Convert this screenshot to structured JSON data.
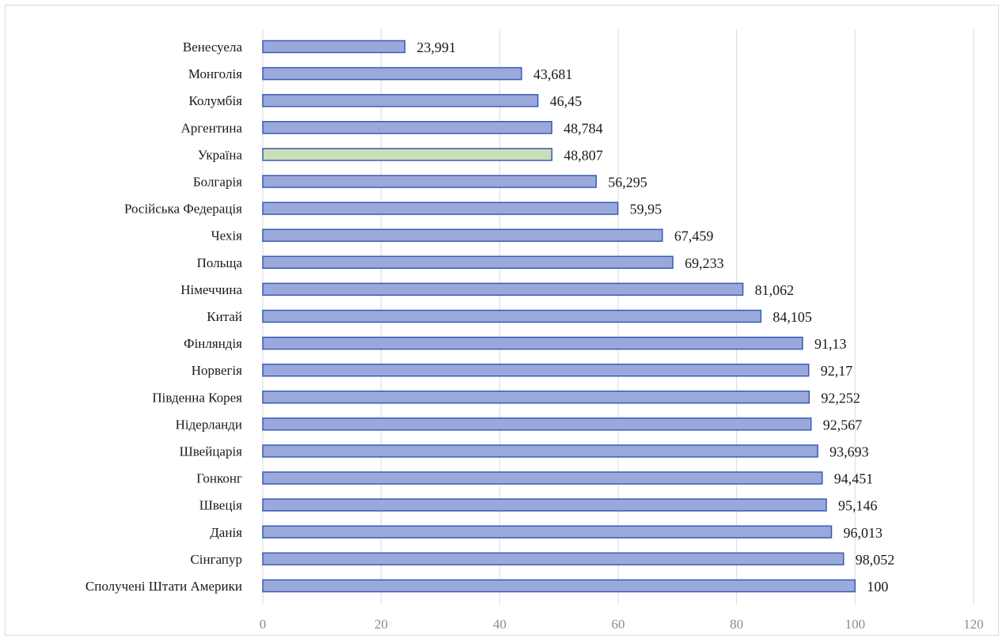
{
  "chart_data": {
    "type": "bar",
    "orientation": "horizontal",
    "categories": [
      "Венесуела",
      "Монголія",
      "Колумбія",
      "Аргентина",
      "Україна",
      "Болгарія",
      "Російська Федерація",
      "Чехія",
      "Польща",
      "Німеччина",
      "Китай",
      "Фінляндія",
      "Норвегія",
      "Південна Корея",
      "Нідерланди",
      "Швейцарія",
      "Гонконг",
      "Швеція",
      "Данія",
      "Сінгапур",
      "Сполучені Штати Америки"
    ],
    "values": [
      23.991,
      43.681,
      46.45,
      48.784,
      48.807,
      56.295,
      59.95,
      67.459,
      69.233,
      81.062,
      84.105,
      91.13,
      92.17,
      92.252,
      92.567,
      93.693,
      94.451,
      95.146,
      96.013,
      98.052,
      100
    ],
    "value_labels": [
      "23,991",
      "43,681",
      "46,45",
      "48,784",
      "48,807",
      "56,295",
      "59,95",
      "67,459",
      "69,233",
      "81,062",
      "84,105",
      "91,13",
      "92,17",
      "92,252",
      "92,567",
      "93,693",
      "94,451",
      "95,146",
      "96,013",
      "98,052",
      "100"
    ],
    "x_ticks": [
      "0",
      "20",
      "40",
      "60",
      "80",
      "100",
      "120"
    ],
    "xlim": [
      0,
      120
    ],
    "title": "",
    "xlabel": "",
    "ylabel": "",
    "grid": "vertical",
    "legend": "none",
    "highlight_category": "Україна",
    "colors": {
      "bar_fill": "#9aa9dc",
      "bar_stroke": "#3a5bb5",
      "highlight_fill": "#c9dfb8",
      "highlight_stroke": "#3a5bb5",
      "grid": "#d9d9d9",
      "tick_text": "#8c8c8c",
      "label_text": "#1a1a1a"
    }
  }
}
